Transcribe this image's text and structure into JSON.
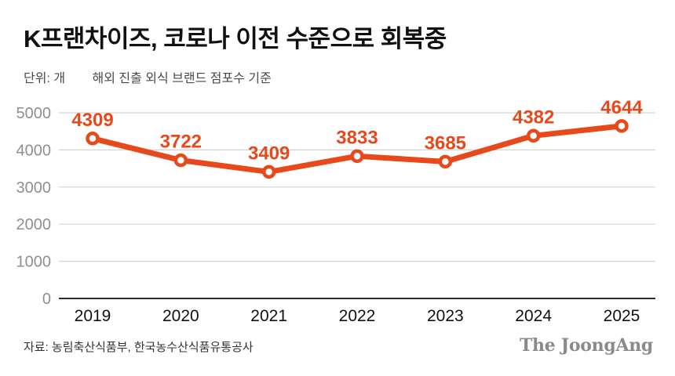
{
  "header": {
    "title": "K프랜차이즈, 코로나 이전 수준으로 회복중",
    "unit_label": "단위: 개",
    "subtitle": "해외 진출 외식 브랜드 점포수 기준"
  },
  "chart_data": {
    "type": "line",
    "title": "K프랜차이즈, 코로나 이전 수준으로 회복중",
    "categories": [
      "2019",
      "2020",
      "2021",
      "2022",
      "2023",
      "2024",
      "2025"
    ],
    "values": [
      4309,
      3722,
      3409,
      3833,
      3685,
      4382,
      4644
    ],
    "xlabel": "",
    "ylabel": "단위: 개",
    "ylim": [
      0,
      5000
    ],
    "yticks": [
      0,
      1000,
      2000,
      3000,
      4000,
      5000
    ],
    "grid": true,
    "legend": "none",
    "line_color": "#e8491b",
    "marker": "open-circle",
    "gridline_color": "#d4d4d4",
    "axis_color": "#2b2b2b",
    "ytick_color": "#8f8f8f",
    "xtick_color": "#111111"
  },
  "footer": {
    "source": "자료: 농림축산식품부, 한국농수산식품유통공사",
    "logo": "The JoongAng"
  }
}
